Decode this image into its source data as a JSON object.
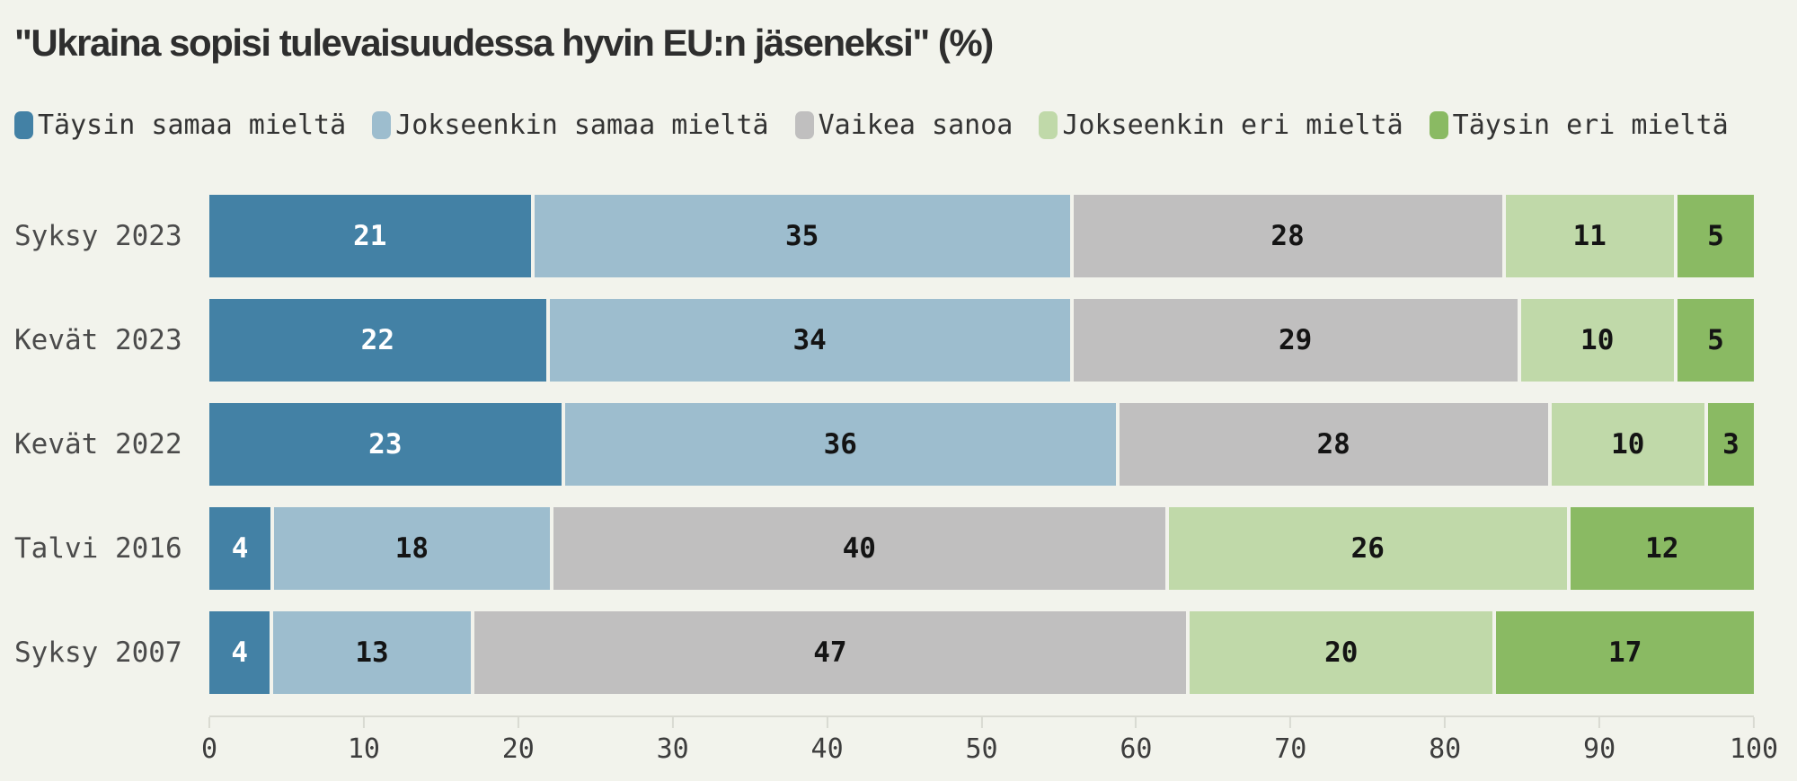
{
  "chart_data": {
    "type": "bar",
    "variant": "horizontal-stacked",
    "title": "\"Ukraina sopisi tulevaisuudessa hyvin EU:n jäseneksi\" (%)",
    "categories": [
      "Syksy 2023",
      "Kevät 2023",
      "Kevät 2022",
      "Talvi 2016",
      "Syksy 2007"
    ],
    "series": [
      {
        "name": "Täysin samaa mieltä",
        "color": "#4381a5",
        "label_color": "#ffffff",
        "values": [
          21,
          22,
          23,
          4,
          4
        ]
      },
      {
        "name": "Jokseenkin samaa mieltä",
        "color": "#9dbdce",
        "label_color": "#141414",
        "values": [
          35,
          34,
          36,
          18,
          13
        ]
      },
      {
        "name": "Vaikea sanoa",
        "color": "#c0bfbf",
        "label_color": "#141414",
        "values": [
          28,
          29,
          28,
          40,
          47
        ]
      },
      {
        "name": "Jokseenkin eri mieltä",
        "color": "#c0d9a9",
        "label_color": "#141414",
        "values": [
          11,
          10,
          10,
          26,
          20
        ]
      },
      {
        "name": "Täysin eri mieltä",
        "color": "#8aba63",
        "label_color": "#141414",
        "values": [
          5,
          5,
          3,
          12,
          17
        ]
      }
    ],
    "x_axis": {
      "min": 0,
      "max": 100,
      "ticks": [
        0,
        10,
        20,
        30,
        40,
        50,
        60,
        70,
        80,
        90,
        100
      ]
    },
    "legend_position": "top",
    "grid": false,
    "background": "#f2f3ec"
  }
}
